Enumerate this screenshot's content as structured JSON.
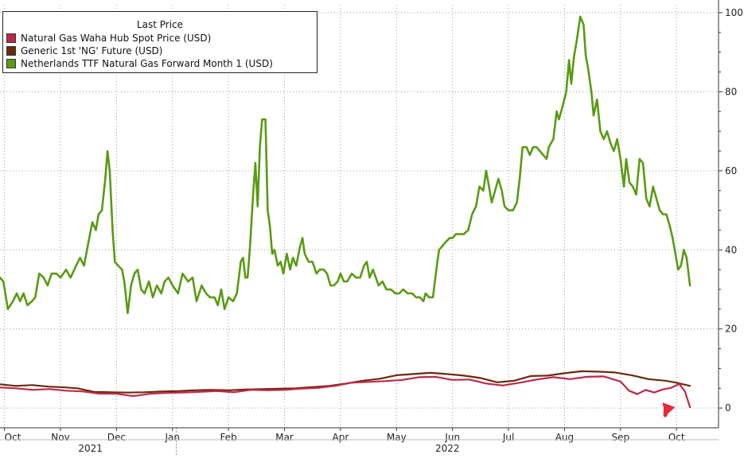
{
  "chart_data": {
    "type": "line",
    "title": "",
    "legend": {
      "title": "Last Price",
      "position": "top-left",
      "entries": [
        {
          "name": "Natural Gas Waha Hub Spot Price (USD)",
          "color": "#c0284a"
        },
        {
          "name": "Generic 1st 'NG' Future (USD)",
          "color": "#6b2a0e"
        },
        {
          "name": "Netherlands TTF Natural Gas Forward Month 1 (USD)",
          "color": "#5a9a14"
        }
      ]
    },
    "x_axis": {
      "ticks": [
        "Oct",
        "Nov",
        "Dec",
        "Jan",
        "Feb",
        "Mar",
        "Apr",
        "May",
        "Jun",
        "Jul",
        "Aug",
        "Sep",
        "Oct"
      ],
      "years": [
        "2021",
        "2022"
      ],
      "tick_months": [
        0,
        1,
        2,
        3,
        4,
        5,
        6,
        7,
        8,
        9,
        10,
        11,
        12
      ],
      "xlim_months": [
        -0.08,
        12.75
      ]
    },
    "y_axis": {
      "side": "right",
      "ticks": [
        0,
        20,
        40,
        60,
        80,
        100
      ],
      "tick_labels": [
        "0",
        "20",
        "40",
        "60",
        "80",
        "100"
      ],
      "ylim": [
        -5,
        102
      ]
    },
    "grid": true,
    "series": [
      {
        "name": "Netherlands TTF Natural Gas Forward Month 1 (USD)",
        "color": "#5a9a14",
        "points": [
          [
            -0.08,
            33
          ],
          [
            -0.02,
            32
          ],
          [
            0.06,
            25
          ],
          [
            0.15,
            27
          ],
          [
            0.22,
            29
          ],
          [
            0.28,
            27
          ],
          [
            0.34,
            29
          ],
          [
            0.41,
            26
          ],
          [
            0.49,
            27
          ],
          [
            0.55,
            28
          ],
          [
            0.62,
            34
          ],
          [
            0.7,
            33
          ],
          [
            0.77,
            31
          ],
          [
            0.84,
            34
          ],
          [
            0.93,
            34
          ],
          [
            1.0,
            33
          ],
          [
            1.1,
            35
          ],
          [
            1.18,
            33
          ],
          [
            1.28,
            36
          ],
          [
            1.35,
            38
          ],
          [
            1.42,
            36
          ],
          [
            1.5,
            42
          ],
          [
            1.57,
            47
          ],
          [
            1.63,
            45
          ],
          [
            1.68,
            49
          ],
          [
            1.74,
            50
          ],
          [
            1.8,
            58
          ],
          [
            1.84,
            65
          ],
          [
            1.88,
            60
          ],
          [
            1.93,
            45
          ],
          [
            1.97,
            37
          ],
          [
            2.03,
            36
          ],
          [
            2.1,
            35
          ],
          [
            2.14,
            32
          ],
          [
            2.2,
            24
          ],
          [
            2.26,
            31
          ],
          [
            2.32,
            34
          ],
          [
            2.38,
            35
          ],
          [
            2.44,
            30
          ],
          [
            2.5,
            29
          ],
          [
            2.58,
            32
          ],
          [
            2.65,
            28
          ],
          [
            2.72,
            31
          ],
          [
            2.8,
            29
          ],
          [
            2.86,
            32
          ],
          [
            2.93,
            33
          ],
          [
            3.0,
            31
          ],
          [
            3.1,
            29
          ],
          [
            3.18,
            34
          ],
          [
            3.28,
            32
          ],
          [
            3.36,
            33
          ],
          [
            3.43,
            27
          ],
          [
            3.52,
            31
          ],
          [
            3.6,
            29
          ],
          [
            3.67,
            28
          ],
          [
            3.75,
            28
          ],
          [
            3.81,
            26
          ],
          [
            3.87,
            30
          ],
          [
            3.93,
            25
          ],
          [
            4.0,
            28
          ],
          [
            4.08,
            27
          ],
          [
            4.15,
            29
          ],
          [
            4.22,
            37
          ],
          [
            4.26,
            38
          ],
          [
            4.3,
            33
          ],
          [
            4.34,
            33
          ],
          [
            4.38,
            40
          ],
          [
            4.44,
            54
          ],
          [
            4.48,
            62
          ],
          [
            4.52,
            51
          ],
          [
            4.56,
            66
          ],
          [
            4.6,
            73
          ],
          [
            4.66,
            73
          ],
          [
            4.7,
            50
          ],
          [
            4.74,
            46
          ],
          [
            4.78,
            39
          ],
          [
            4.82,
            40
          ],
          [
            4.88,
            36
          ],
          [
            4.93,
            37
          ],
          [
            4.98,
            34
          ],
          [
            5.04,
            39
          ],
          [
            5.1,
            35
          ],
          [
            5.15,
            38
          ],
          [
            5.21,
            36
          ],
          [
            5.28,
            41
          ],
          [
            5.32,
            43
          ],
          [
            5.36,
            39
          ],
          [
            5.43,
            37
          ],
          [
            5.5,
            37
          ],
          [
            5.57,
            34
          ],
          [
            5.63,
            35
          ],
          [
            5.7,
            35
          ],
          [
            5.76,
            34
          ],
          [
            5.82,
            31
          ],
          [
            5.88,
            31
          ],
          [
            5.95,
            32
          ],
          [
            6.0,
            34
          ],
          [
            6.06,
            32
          ],
          [
            6.12,
            32
          ],
          [
            6.2,
            34
          ],
          [
            6.28,
            33
          ],
          [
            6.35,
            33
          ],
          [
            6.42,
            36
          ],
          [
            6.47,
            37
          ],
          [
            6.52,
            33
          ],
          [
            6.58,
            35
          ],
          [
            6.63,
            33
          ],
          [
            6.68,
            31
          ],
          [
            6.75,
            32
          ],
          [
            6.82,
            30
          ],
          [
            6.9,
            30
          ],
          [
            6.98,
            29
          ],
          [
            7.05,
            29
          ],
          [
            7.12,
            30
          ],
          [
            7.2,
            29
          ],
          [
            7.28,
            29
          ],
          [
            7.35,
            28
          ],
          [
            7.42,
            28
          ],
          [
            7.48,
            27
          ],
          [
            7.52,
            29
          ],
          [
            7.58,
            28
          ],
          [
            7.65,
            28
          ],
          [
            7.72,
            36
          ],
          [
            7.76,
            40
          ],
          [
            7.82,
            41
          ],
          [
            7.88,
            42
          ],
          [
            7.95,
            43
          ],
          [
            8.0,
            43
          ],
          [
            8.06,
            44
          ],
          [
            8.12,
            44
          ],
          [
            8.2,
            44
          ],
          [
            8.28,
            45
          ],
          [
            8.35,
            49
          ],
          [
            8.42,
            51
          ],
          [
            8.48,
            56
          ],
          [
            8.55,
            55
          ],
          [
            8.6,
            60
          ],
          [
            8.64,
            57
          ],
          [
            8.7,
            52
          ],
          [
            8.76,
            55
          ],
          [
            8.82,
            58
          ],
          [
            8.88,
            55
          ],
          [
            8.93,
            51
          ],
          [
            9.0,
            50
          ],
          [
            9.08,
            50
          ],
          [
            9.15,
            52
          ],
          [
            9.2,
            58
          ],
          [
            9.25,
            66
          ],
          [
            9.32,
            66
          ],
          [
            9.38,
            64
          ],
          [
            9.44,
            66
          ],
          [
            9.5,
            66
          ],
          [
            9.56,
            65
          ],
          [
            9.62,
            64
          ],
          [
            9.68,
            63
          ],
          [
            9.72,
            66
          ],
          [
            9.8,
            68
          ],
          [
            9.86,
            75
          ],
          [
            9.9,
            73
          ],
          [
            9.96,
            76
          ],
          [
            10.03,
            80
          ],
          [
            10.08,
            88
          ],
          [
            10.12,
            82
          ],
          [
            10.17,
            89
          ],
          [
            10.22,
            93
          ],
          [
            10.28,
            99
          ],
          [
            10.34,
            97
          ],
          [
            10.38,
            89
          ],
          [
            10.42,
            86
          ],
          [
            10.48,
            80
          ],
          [
            10.52,
            74
          ],
          [
            10.58,
            78
          ],
          [
            10.64,
            70
          ],
          [
            10.7,
            68
          ],
          [
            10.76,
            70
          ],
          [
            10.82,
            67
          ],
          [
            10.88,
            65
          ],
          [
            10.94,
            68
          ],
          [
            11.0,
            63
          ],
          [
            11.06,
            56
          ],
          [
            11.1,
            63
          ],
          [
            11.16,
            57
          ],
          [
            11.22,
            56
          ],
          [
            11.28,
            54
          ],
          [
            11.34,
            63
          ],
          [
            11.4,
            62
          ],
          [
            11.46,
            53
          ],
          [
            11.52,
            51
          ],
          [
            11.58,
            56
          ],
          [
            11.64,
            53
          ],
          [
            11.7,
            50
          ],
          [
            11.76,
            49
          ],
          [
            11.82,
            49
          ],
          [
            11.88,
            46
          ],
          [
            11.93,
            43
          ],
          [
            11.98,
            39
          ],
          [
            12.03,
            35
          ],
          [
            12.08,
            36
          ],
          [
            12.13,
            40
          ],
          [
            12.18,
            38
          ],
          [
            12.24,
            31
          ]
        ]
      },
      {
        "name": "Generic 1st 'NG' Future (USD)",
        "color": "#6b2a0e",
        "points": [
          [
            -0.08,
            6.0
          ],
          [
            0.2,
            5.6
          ],
          [
            0.5,
            5.8
          ],
          [
            0.8,
            5.4
          ],
          [
            1.0,
            5.3
          ],
          [
            1.3,
            5.0
          ],
          [
            1.6,
            4.1
          ],
          [
            1.9,
            4.0
          ],
          [
            2.2,
            3.9
          ],
          [
            2.5,
            4.0
          ],
          [
            2.8,
            4.2
          ],
          [
            3.1,
            4.3
          ],
          [
            3.4,
            4.5
          ],
          [
            3.7,
            4.6
          ],
          [
            4.0,
            4.5
          ],
          [
            4.3,
            4.7
          ],
          [
            4.6,
            4.8
          ],
          [
            4.9,
            4.9
          ],
          [
            5.2,
            5.0
          ],
          [
            5.5,
            5.3
          ],
          [
            5.8,
            5.6
          ],
          [
            6.1,
            6.2
          ],
          [
            6.4,
            6.9
          ],
          [
            6.7,
            7.4
          ],
          [
            7.0,
            8.3
          ],
          [
            7.3,
            8.6
          ],
          [
            7.6,
            8.9
          ],
          [
            7.9,
            8.6
          ],
          [
            8.2,
            8.2
          ],
          [
            8.5,
            7.6
          ],
          [
            8.8,
            6.5
          ],
          [
            9.1,
            6.9
          ],
          [
            9.4,
            8.1
          ],
          [
            9.7,
            8.2
          ],
          [
            10.0,
            8.8
          ],
          [
            10.3,
            9.3
          ],
          [
            10.6,
            9.2
          ],
          [
            10.9,
            9.0
          ],
          [
            11.2,
            8.3
          ],
          [
            11.5,
            7.3
          ],
          [
            11.8,
            6.9
          ],
          [
            12.0,
            6.4
          ],
          [
            12.24,
            5.6
          ]
        ]
      },
      {
        "name": "Natural Gas Waha Hub Spot Price (USD)",
        "color": "#c0284a",
        "points": [
          [
            -0.08,
            5.2
          ],
          [
            0.2,
            5.0
          ],
          [
            0.5,
            4.6
          ],
          [
            0.8,
            4.8
          ],
          [
            1.1,
            4.4
          ],
          [
            1.4,
            4.2
          ],
          [
            1.7,
            3.6
          ],
          [
            2.0,
            3.6
          ],
          [
            2.3,
            3.0
          ],
          [
            2.6,
            3.6
          ],
          [
            2.9,
            3.8
          ],
          [
            3.2,
            3.9
          ],
          [
            3.5,
            4.1
          ],
          [
            3.8,
            4.3
          ],
          [
            4.1,
            4.0
          ],
          [
            4.4,
            4.6
          ],
          [
            4.7,
            4.5
          ],
          [
            5.0,
            4.6
          ],
          [
            5.3,
            4.9
          ],
          [
            5.6,
            5.1
          ],
          [
            5.9,
            5.6
          ],
          [
            6.2,
            6.4
          ],
          [
            6.5,
            6.6
          ],
          [
            6.8,
            6.8
          ],
          [
            7.1,
            7.1
          ],
          [
            7.4,
            7.8
          ],
          [
            7.7,
            7.9
          ],
          [
            8.0,
            7.1
          ],
          [
            8.3,
            7.2
          ],
          [
            8.6,
            6.2
          ],
          [
            8.9,
            5.7
          ],
          [
            9.2,
            6.4
          ],
          [
            9.5,
            7.2
          ],
          [
            9.8,
            7.8
          ],
          [
            10.1,
            7.3
          ],
          [
            10.4,
            7.9
          ],
          [
            10.7,
            8.0
          ],
          [
            11.0,
            6.7
          ],
          [
            11.15,
            4.4
          ],
          [
            11.3,
            3.5
          ],
          [
            11.45,
            4.6
          ],
          [
            11.6,
            3.9
          ],
          [
            11.75,
            4.7
          ],
          [
            11.9,
            5.1
          ],
          [
            12.05,
            6.1
          ],
          [
            12.15,
            4.2
          ],
          [
            12.24,
            0.2
          ]
        ]
      }
    ],
    "annotation": {
      "type": "arrow",
      "color": "#e62a3a",
      "style": "dashed",
      "from": [
        11.8,
        -1.8
      ],
      "to": [
        12.4,
        0.2
      ]
    }
  }
}
